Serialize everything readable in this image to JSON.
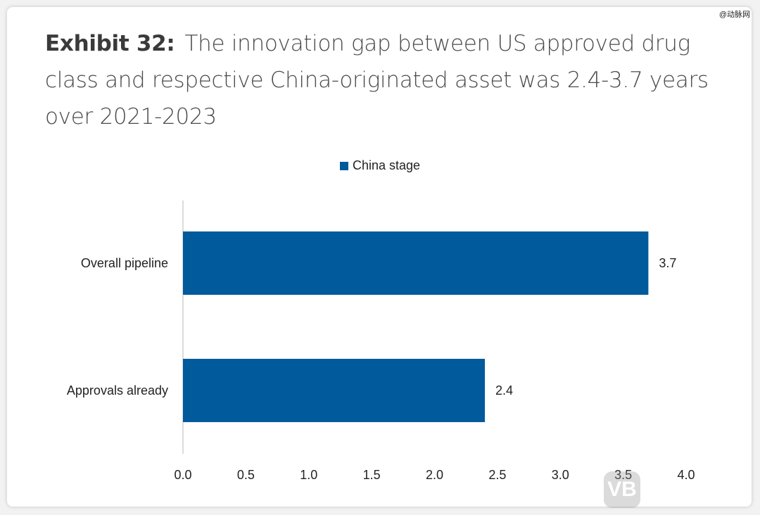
{
  "title": {
    "label": "Exhibit 32:",
    "text": "The innovation gap between US approved drug class and respective China-originated asset was 2.4-3.7 years over 2021-2023"
  },
  "watermark_top": "@动脉网",
  "watermark_logo": "动脉网",
  "chart_data": {
    "type": "bar",
    "orientation": "horizontal",
    "categories": [
      "Overall pipeline",
      "Approvals already"
    ],
    "series": [
      {
        "name": "China stage",
        "values": [
          3.7,
          2.4
        ],
        "color": "#005a9c"
      }
    ],
    "data_labels": [
      "3.7",
      "2.4"
    ],
    "xlim": [
      0,
      4.0
    ],
    "xticks": [
      "0.0",
      "0.5",
      "1.0",
      "1.5",
      "2.0",
      "2.5",
      "3.0",
      "3.5",
      "4.0"
    ],
    "grid": false,
    "legend_position": "top"
  }
}
